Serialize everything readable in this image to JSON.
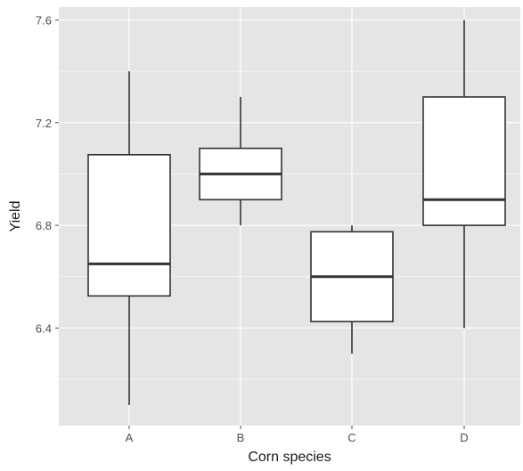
{
  "chart_data": {
    "type": "boxplot",
    "xlabel": "Corn species",
    "ylabel": "Yield",
    "categories": [
      "A",
      "B",
      "C",
      "D"
    ],
    "boxes": [
      {
        "category": "A",
        "whisker_low": 6.1,
        "q1": 6.525,
        "median": 6.65,
        "q3": 7.075,
        "whisker_high": 7.4
      },
      {
        "category": "B",
        "whisker_low": 6.8,
        "q1": 6.9,
        "median": 7.0,
        "q3": 7.1,
        "whisker_high": 7.3
      },
      {
        "category": "C",
        "whisker_low": 6.3,
        "q1": 6.425,
        "median": 6.6,
        "q3": 6.775,
        "whisker_high": 6.8
      },
      {
        "category": "D",
        "whisker_low": 6.4,
        "q1": 6.8,
        "median": 6.9,
        "q3": 7.3,
        "whisker_high": 7.6
      }
    ],
    "ylim": [
      6.02,
      7.65
    ],
    "y_ticks": [
      6.4,
      6.8,
      7.2,
      7.6
    ],
    "y_tick_labels": [
      "6.4",
      "6.8",
      "7.2",
      "7.6"
    ],
    "grid": true,
    "colors": {
      "panel_bg": "#e5e5e5",
      "grid": "#ffffff",
      "box_fill": "#ffffff",
      "box_stroke": "#333333",
      "median": "#333333",
      "axis_text": "#4d4d4d",
      "title_text": "#1a1a1a"
    }
  }
}
